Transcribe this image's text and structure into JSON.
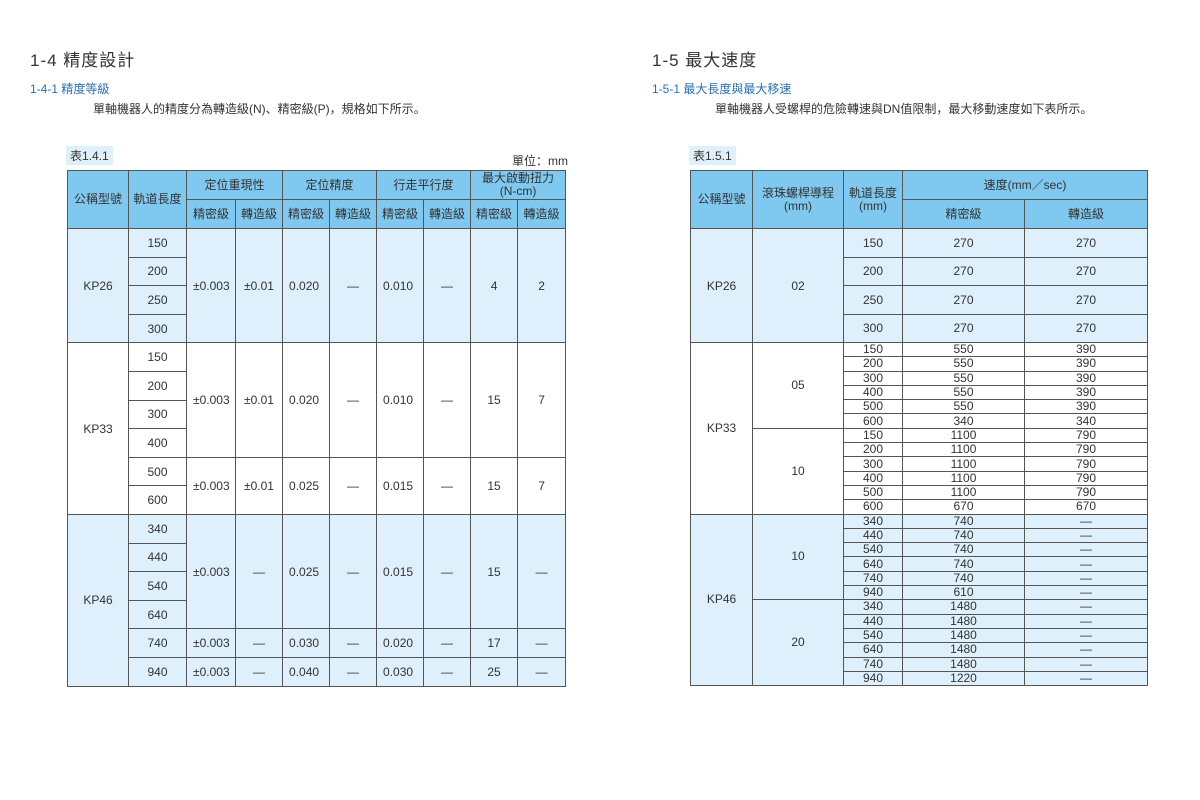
{
  "left": {
    "title": "1-4 精度設計",
    "subtitle": "1-4-1 精度等級",
    "paragraph": "單軸機器人的精度分為轉造級(N)、精密級(P)，規格如下所示。",
    "caption": "表1.4.1",
    "unit": "單位：mm",
    "headers": {
      "model": "公稱型號",
      "length": "軌道長度",
      "groups": [
        "定位重現性",
        "定位精度",
        "行走平行度",
        "最大啟動扭力\n(N-cm)"
      ],
      "sub": [
        "精密級",
        "轉造級",
        "精密級",
        "轉造級",
        "精密級",
        "轉造級",
        "精密級",
        "轉造級"
      ]
    },
    "models": [
      {
        "model": "KP26",
        "groups": [
          {
            "lengths": [
              "150",
              "200",
              "250",
              "300"
            ],
            "values": [
              "±0.003",
              "±0.01",
              "0.020",
              "—",
              "0.010",
              "—",
              "4",
              "2"
            ]
          }
        ]
      },
      {
        "model": "KP33",
        "groups": [
          {
            "lengths": [
              "150",
              "200",
              "300",
              "400"
            ],
            "values": [
              "±0.003",
              "±0.01",
              "0.020",
              "—",
              "0.010",
              "—",
              "15",
              "7"
            ]
          },
          {
            "lengths": [
              "500",
              "600"
            ],
            "values": [
              "±0.003",
              "±0.01",
              "0.025",
              "—",
              "0.015",
              "—",
              "15",
              "7"
            ]
          }
        ]
      },
      {
        "model": "KP46",
        "groups": [
          {
            "lengths": [
              "340",
              "440",
              "540",
              "640"
            ],
            "values": [
              "±0.003",
              "—",
              "0.025",
              "—",
              "0.015",
              "—",
              "15",
              "—"
            ]
          },
          {
            "lengths": [
              "740"
            ],
            "values": [
              "±0.003",
              "—",
              "0.030",
              "—",
              "0.020",
              "—",
              "17",
              "—"
            ]
          },
          {
            "lengths": [
              "940"
            ],
            "values": [
              "±0.003",
              "—",
              "0.040",
              "—",
              "0.030",
              "—",
              "25",
              "—"
            ]
          }
        ]
      }
    ]
  },
  "right": {
    "title": "1-5 最大速度",
    "subtitle": "1-5-1 最大長度與最大移速",
    "paragraph": "單軸機器人受螺桿的危險轉速與DN值限制，最大移動速度如下表所示。",
    "caption": "表1.5.1",
    "headers": {
      "model": "公稱型號",
      "lead": "滾珠螺桿導程\n(mm)",
      "length": "軌道長度\n(mm)",
      "speed": "速度(mm／sec)",
      "sub": [
        "精密級",
        "轉造級"
      ]
    },
    "models": [
      {
        "model": "KP26",
        "leads": [
          {
            "lead": "02",
            "rows": [
              [
                "150",
                "270",
                "270"
              ],
              [
                "200",
                "270",
                "270"
              ],
              [
                "250",
                "270",
                "270"
              ],
              [
                "300",
                "270",
                "270"
              ]
            ]
          }
        ]
      },
      {
        "model": "KP33",
        "leads": [
          {
            "lead": "05",
            "rows": [
              [
                "150",
                "550",
                "390"
              ],
              [
                "200",
                "550",
                "390"
              ],
              [
                "300",
                "550",
                "390"
              ],
              [
                "400",
                "550",
                "390"
              ],
              [
                "500",
                "550",
                "390"
              ],
              [
                "600",
                "340",
                "340"
              ]
            ]
          },
          {
            "lead": "10",
            "rows": [
              [
                "150",
                "1100",
                "790"
              ],
              [
                "200",
                "1100",
                "790"
              ],
              [
                "300",
                "1100",
                "790"
              ],
              [
                "400",
                "1100",
                "790"
              ],
              [
                "500",
                "1100",
                "790"
              ],
              [
                "600",
                "670",
                "670"
              ]
            ]
          }
        ]
      },
      {
        "model": "KP46",
        "leads": [
          {
            "lead": "10",
            "rows": [
              [
                "340",
                "740",
                "—"
              ],
              [
                "440",
                "740",
                "—"
              ],
              [
                "540",
                "740",
                "—"
              ],
              [
                "640",
                "740",
                "—"
              ],
              [
                "740",
                "740",
                "—"
              ],
              [
                "940",
                "610",
                "—"
              ]
            ]
          },
          {
            "lead": "20",
            "rows": [
              [
                "340",
                "1480",
                "—"
              ],
              [
                "440",
                "1480",
                "—"
              ],
              [
                "540",
                "1480",
                "—"
              ],
              [
                "640",
                "1480",
                "—"
              ],
              [
                "740",
                "1480",
                "—"
              ],
              [
                "940",
                "1220",
                "—"
              ]
            ]
          }
        ]
      }
    ]
  },
  "colors": {
    "header": "#7fc8ef",
    "band": "#ddf0fb",
    "heading": "#2a6fb5"
  }
}
